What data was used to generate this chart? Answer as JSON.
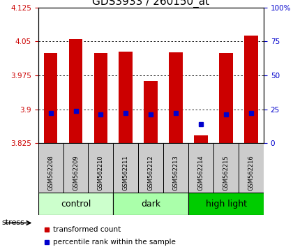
{
  "title": "GDS3933 / 260150_at",
  "samples": [
    "GSM562208",
    "GSM562209",
    "GSM562210",
    "GSM562211",
    "GSM562212",
    "GSM562213",
    "GSM562214",
    "GSM562215",
    "GSM562216"
  ],
  "groups": [
    {
      "label": "control",
      "indices": [
        0,
        1,
        2
      ],
      "color": "#ccffcc"
    },
    {
      "label": "dark",
      "indices": [
        3,
        4,
        5
      ],
      "color": "#aaffaa"
    },
    {
      "label": "high light",
      "indices": [
        6,
        7,
        8
      ],
      "color": "#00cc00"
    }
  ],
  "transformed_counts": [
    4.025,
    4.055,
    4.025,
    4.027,
    3.963,
    4.026,
    3.843,
    4.025,
    4.063
  ],
  "percentile_ranks": [
    22,
    24,
    21,
    22,
    21,
    22,
    14,
    21,
    22
  ],
  "ylim_left": [
    3.825,
    4.125
  ],
  "ylim_right": [
    0,
    100
  ],
  "yticks_left": [
    3.825,
    3.9,
    3.975,
    4.05,
    4.125
  ],
  "yticks_right": [
    0,
    25,
    50,
    75,
    100
  ],
  "bar_color": "#cc0000",
  "dot_color": "#0000cc",
  "bar_bottom": 3.825,
  "bar_width": 0.55,
  "tick_label_color_left": "#cc0000",
  "tick_label_color_right": "#0000cc",
  "title_fontsize": 11,
  "stress_label": "stress",
  "legend_items": [
    "transformed count",
    "percentile rank within the sample"
  ],
  "sample_box_color": "#cccccc",
  "group_label_fontsize": 9
}
